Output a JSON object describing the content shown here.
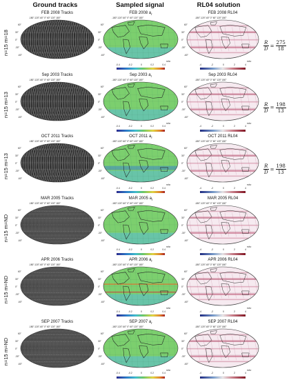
{
  "column_headers": [
    "Ground tracks",
    "Sampled signal",
    "RL04 solution"
  ],
  "map_ticks": {
    "top": "-180°-120°-60° 0° 60° 120° 180°",
    "lat_labels": [
      "60°",
      "30°",
      "0°",
      "-30°",
      "-60°"
    ]
  },
  "signal_colorbar": {
    "ticks": "-0.4 -0.2 0 0.2 0.4",
    "unit": "m/s²"
  },
  "rl04_colorbar": {
    "ticks": "-4 -2 0 2 4",
    "unit": "m/s²"
  },
  "rows": [
    {
      "label": "n=15  m=18",
      "tracks_title": "FEB 2008 Tracks",
      "signal_title": "FEB 2008 a",
      "signal_sub": "r",
      "rl04_title": "FEB 2008 RL04",
      "ratio": {
        "num_lhs": "R",
        "den_lhs": "D",
        "num": "275",
        "den": "18"
      }
    },
    {
      "label": "n=15  m=13",
      "tracks_title": "Sep 2003 Tracks",
      "signal_title": "Sep 2003 a",
      "signal_sub": "r",
      "rl04_title": "Sep 2003 RL04",
      "ratio": {
        "num_lhs": "R",
        "den_lhs": "D",
        "num": "198",
        "den": "13"
      }
    },
    {
      "label": "n=15  m=13",
      "tracks_title": "OCT 2011 Tracks",
      "signal_title": "OCT 2011 a",
      "signal_sub": "r",
      "rl04_title": "OCT 2011 RL04",
      "ratio": {
        "num_lhs": "R",
        "den_lhs": "D",
        "num": "198",
        "den": "13"
      }
    },
    {
      "label": "n=15  m=ND",
      "tracks_title": "MAR 2005 Tracks",
      "signal_title": "MAR 2005 a",
      "signal_sub": "r",
      "rl04_title": "MAR 2005 RL04"
    },
    {
      "label": "n=15  m=ND",
      "tracks_title": "APR 2006 Tracks",
      "signal_title": "APR 2006 a",
      "signal_sub": "r",
      "rl04_title": "APR 2006 RL04"
    },
    {
      "label": "n=15  m=ND",
      "tracks_title": "SEP 2007 Tracks",
      "signal_title": "SEP 2007 a",
      "signal_sub": "r",
      "rl04_title": "SEP 2007 RL04"
    }
  ]
}
